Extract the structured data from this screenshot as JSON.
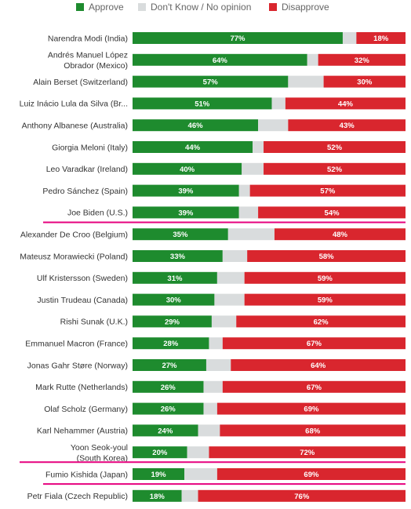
{
  "chart_data": {
    "type": "bar",
    "orientation": "horizontal",
    "stacked": true,
    "title": "",
    "xlabel": "",
    "ylabel": "",
    "xlim": [
      0,
      100
    ],
    "legend_position": "top",
    "colors": {
      "approve": "#1e8b2e",
      "dont_know": "#d9dcdd",
      "disapprove": "#d9262e",
      "highlight_line": "#e6007e"
    },
    "series": [
      {
        "key": "approve",
        "name": "Approve"
      },
      {
        "key": "dont_know",
        "name": "Don't Know / No opinion"
      },
      {
        "key": "disapprove",
        "name": "Disapprove"
      }
    ],
    "rows": [
      {
        "label": [
          "Narendra Modi (India)"
        ],
        "approve": 77,
        "disapprove": 18,
        "highlighted": false
      },
      {
        "label": [
          "Andrés Manuel López",
          "Obrador (Mexico)"
        ],
        "approve": 64,
        "disapprove": 32,
        "highlighted": false
      },
      {
        "label": [
          "Alain Berset (Switzerland)"
        ],
        "approve": 57,
        "disapprove": 30,
        "highlighted": false
      },
      {
        "label": [
          "Luiz Inácio Lula da Silva (Br..."
        ],
        "approve": 51,
        "disapprove": 44,
        "highlighted": false
      },
      {
        "label": [
          "Anthony Albanese (Australia)"
        ],
        "approve": 46,
        "disapprove": 43,
        "highlighted": false
      },
      {
        "label": [
          "Giorgia Meloni (Italy)"
        ],
        "approve": 44,
        "disapprove": 52,
        "highlighted": false
      },
      {
        "label": [
          "Leo Varadkar (Ireland)"
        ],
        "approve": 40,
        "disapprove": 52,
        "highlighted": false
      },
      {
        "label": [
          "Pedro Sánchez (Spain)"
        ],
        "approve": 39,
        "disapprove": 57,
        "highlighted": false
      },
      {
        "label": [
          "Joe Biden (U.S.)"
        ],
        "approve": 39,
        "disapprove": 54,
        "highlighted": true
      },
      {
        "label": [
          "Alexander De Croo (Belgium)"
        ],
        "approve": 35,
        "disapprove": 48,
        "highlighted": false
      },
      {
        "label": [
          "Mateusz Morawiecki (Poland)"
        ],
        "approve": 33,
        "disapprove": 58,
        "highlighted": false
      },
      {
        "label": [
          "Ulf Kristersson (Sweden)"
        ],
        "approve": 31,
        "disapprove": 59,
        "highlighted": false
      },
      {
        "label": [
          "Justin Trudeau (Canada)"
        ],
        "approve": 30,
        "disapprove": 59,
        "highlighted": false
      },
      {
        "label": [
          "Rishi Sunak (U.K.)"
        ],
        "approve": 29,
        "disapprove": 62,
        "highlighted": false
      },
      {
        "label": [
          "Emmanuel Macron (France)"
        ],
        "approve": 28,
        "disapprove": 67,
        "highlighted": false
      },
      {
        "label": [
          "Jonas Gahr Støre (Norway)"
        ],
        "approve": 27,
        "disapprove": 64,
        "highlighted": false
      },
      {
        "label": [
          "Mark Rutte (Netherlands)"
        ],
        "approve": 26,
        "disapprove": 67,
        "highlighted": false
      },
      {
        "label": [
          "Olaf Scholz (Germany)"
        ],
        "approve": 26,
        "disapprove": 69,
        "highlighted": false
      },
      {
        "label": [
          "Karl Nehammer (Austria)"
        ],
        "approve": 24,
        "disapprove": 68,
        "highlighted": false
      },
      {
        "label": [
          "Yoon Seok-youl",
          "(South Korea)"
        ],
        "approve": 20,
        "disapprove": 72,
        "highlighted": true
      },
      {
        "label": [
          "Fumio Kishida (Japan)"
        ],
        "approve": 19,
        "disapprove": 69,
        "highlighted": true
      },
      {
        "label": [
          "Petr Fiala (Czech Republic)"
        ],
        "approve": 18,
        "disapprove": 76,
        "highlighted": false
      }
    ]
  }
}
